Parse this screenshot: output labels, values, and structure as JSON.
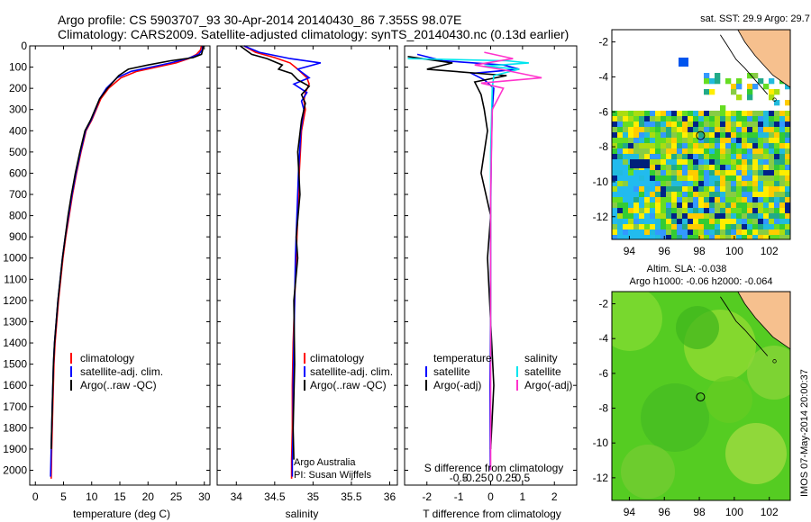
{
  "header": {
    "line1": "Argo profile: CS 5903707_93 30-Apr-2014 20140430_86 7.355S 98.07E",
    "line2": "Climatology: CARS2009. Satellite-adjusted climatology: synTS_20140430.nc (0.13d earlier)"
  },
  "colors": {
    "climatology": "#ff0000",
    "satellite": "#0000ff",
    "argo": "#000000",
    "sal_satellite": "#00e5ee",
    "sal_argo": "#ff33cc",
    "land": "#f6c08e"
  },
  "credits": {
    "agency": "Argo Australia",
    "pi": "PI: Susan Wijffels",
    "stamp": "IMOS 07-May-2014 20:00:37"
  },
  "chart_data": [
    {
      "id": "temperature",
      "type": "line",
      "xlabel": "temperature (deg C)",
      "xlim": [
        -1,
        31
      ],
      "xticks": [
        0,
        5,
        10,
        15,
        20,
        25,
        30
      ],
      "ylim": [
        2070,
        0
      ],
      "yticks": [
        0,
        100,
        200,
        300,
        400,
        500,
        600,
        700,
        800,
        900,
        1000,
        1100,
        1200,
        1300,
        1400,
        1500,
        1600,
        1700,
        1800,
        1900,
        2000
      ],
      "legend": [
        "climatology",
        "satellite-adj. clim.",
        "Argo(..raw -QC)"
      ],
      "series": [
        {
          "name": "climatology",
          "color": "#ff0000",
          "x": [
            29.5,
            29.3,
            28.6,
            27.2,
            25.0,
            21.5,
            18.0,
            15.2,
            13.0,
            11.6,
            10.8,
            10.0,
            9.0,
            8.1,
            7.3,
            6.6,
            6.0,
            5.4,
            4.9,
            4.5,
            4.1,
            3.8,
            3.5,
            3.3,
            3.1,
            2.9,
            2.8
          ],
          "y": [
            0,
            20,
            40,
            60,
            80,
            100,
            120,
            150,
            200,
            250,
            300,
            350,
            400,
            500,
            600,
            700,
            800,
            900,
            1000,
            1100,
            1200,
            1300,
            1400,
            1500,
            1700,
            1900,
            2040
          ]
        },
        {
          "name": "satellite-adj. clim.",
          "color": "#0000ff",
          "x": [
            29.7,
            29.6,
            29.0,
            27.0,
            24.0,
            20.5,
            17.0,
            14.5,
            12.6,
            11.4,
            10.7,
            9.9,
            8.9,
            8.0,
            7.2,
            6.5,
            5.9,
            5.3,
            4.8,
            4.4,
            4.0,
            3.7,
            3.4,
            3.2,
            3.0,
            2.8,
            2.7
          ],
          "y": [
            0,
            20,
            40,
            60,
            80,
            100,
            120,
            150,
            200,
            250,
            300,
            350,
            400,
            500,
            600,
            700,
            800,
            900,
            1000,
            1100,
            1200,
            1300,
            1400,
            1500,
            1700,
            1900,
            2030
          ]
        },
        {
          "name": "Argo(..raw -QC)",
          "color": "#000000",
          "x": [
            29.8,
            29.7,
            29.5,
            28.0,
            24.0,
            20.0,
            16.5,
            14.8,
            12.8,
            11.4,
            10.6,
            9.8,
            8.8,
            7.9,
            7.1,
            6.4,
            5.8,
            5.3,
            4.8,
            4.4,
            4.0,
            3.7,
            3.4,
            3.2,
            3.0,
            2.8
          ],
          "y": [
            0,
            20,
            40,
            55,
            70,
            90,
            110,
            140,
            200,
            250,
            300,
            350,
            400,
            500,
            600,
            700,
            800,
            900,
            1000,
            1100,
            1200,
            1300,
            1400,
            1500,
            1700,
            1900
          ]
        }
      ]
    },
    {
      "id": "salinity",
      "type": "line",
      "xlabel": "salinity",
      "xlim": [
        33.75,
        36.1
      ],
      "xticks": [
        34,
        34.5,
        35,
        35.5,
        36
      ],
      "ylim": [
        2070,
        0
      ],
      "legend": [
        "climatology",
        "satellite-adj. clim.",
        "Argo(..raw -QC)"
      ],
      "series": [
        {
          "name": "climatology",
          "color": "#ff0000",
          "x": [
            34.1,
            34.25,
            34.5,
            34.7,
            34.8,
            34.92,
            34.95,
            34.9,
            34.88,
            34.9,
            34.85,
            34.82,
            34.8,
            34.78,
            34.76,
            34.74,
            34.73,
            34.73,
            34.72,
            34.72
          ],
          "y": [
            0,
            30,
            55,
            80,
            110,
            150,
            180,
            220,
            260,
            300,
            400,
            600,
            800,
            1000,
            1200,
            1400,
            1600,
            1800,
            1950,
            2040
          ]
        },
        {
          "name": "satellite-adj. clim.",
          "color": "#0000ff",
          "x": [
            34.1,
            34.3,
            34.7,
            35.1,
            34.8,
            34.95,
            34.75,
            34.92,
            34.85,
            34.88,
            34.84,
            34.81,
            34.79,
            34.77,
            34.76,
            34.75,
            34.74,
            34.74,
            34.73,
            34.73
          ],
          "y": [
            0,
            30,
            60,
            80,
            110,
            150,
            180,
            220,
            260,
            300,
            400,
            600,
            800,
            1000,
            1200,
            1400,
            1600,
            1800,
            1950,
            2030
          ]
        },
        {
          "name": "Argo(..raw -QC)",
          "color": "#000000",
          "x": [
            34.05,
            34.2,
            34.4,
            34.6,
            34.55,
            34.72,
            34.8,
            34.95,
            34.85,
            34.9,
            34.85,
            34.8,
            34.83,
            34.78,
            34.8,
            34.75,
            34.76,
            34.74,
            34.75
          ],
          "y": [
            0,
            40,
            60,
            90,
            110,
            130,
            160,
            190,
            230,
            270,
            350,
            500,
            700,
            900,
            1000,
            1200,
            1500,
            1800,
            1950
          ]
        }
      ]
    },
    {
      "id": "difference",
      "type": "line",
      "xlabel": "T difference from climatology",
      "xlabel_top": "S difference from climatology",
      "xlim": [
        -2.7,
        2.7
      ],
      "xticks": [
        -2,
        -1,
        0,
        1,
        2
      ],
      "xticks_s": [
        "-0.5",
        "-0.25",
        "0",
        "0.25",
        "0.5"
      ],
      "ylim": [
        2070,
        0
      ],
      "legend_left_title": "temperature",
      "legend_right_title": "salinity",
      "legend": [
        "satellite",
        "Argo(-adj)",
        "satellite",
        "Argo(-adj)"
      ],
      "series": [
        {
          "name": "T satellite",
          "color": "#0000ff",
          "x": [
            -2.3,
            -1.5,
            0.4,
            0.9,
            -0.6,
            -0.2,
            0.1,
            0.05,
            0.02,
            0.0,
            0.0,
            -0.02,
            -0.01
          ],
          "y": [
            40,
            70,
            90,
            110,
            130,
            160,
            200,
            300,
            500,
            800,
            1200,
            1600,
            2000
          ]
        },
        {
          "name": "T Argo(-adj)",
          "color": "#000000",
          "x": [
            -2.6,
            -1.2,
            -2.0,
            0.5,
            -0.5,
            -0.3,
            -0.2,
            -0.1,
            -0.3,
            0.0,
            -0.1,
            0.0,
            0.1,
            0.0
          ],
          "y": [
            50,
            80,
            110,
            140,
            170,
            230,
            300,
            400,
            600,
            800,
            1000,
            1300,
            1600,
            1900
          ]
        },
        {
          "name": "S satellite",
          "color": "#00e5ee",
          "x": [
            -2.6,
            0.5,
            1.2,
            -0.2,
            0.9,
            0.1,
            0.05,
            0.0,
            0.0
          ],
          "y": [
            60,
            70,
            80,
            95,
            110,
            140,
            200,
            500,
            1500
          ]
        },
        {
          "name": "S Argo(-adj)",
          "color": "#ff33cc",
          "x": [
            -0.2,
            0.7,
            -0.5,
            0.3,
            1.6,
            -0.3,
            0.4,
            0.05,
            0.0,
            0.0
          ],
          "y": [
            30,
            60,
            90,
            110,
            150,
            175,
            200,
            300,
            700,
            2000
          ]
        }
      ]
    },
    {
      "id": "sst-map",
      "type": "heatmap",
      "title": "sat. SST: 29.9 Argo: 29.7",
      "xticks": [
        94,
        96,
        98,
        100,
        102
      ],
      "yticks": [
        -2,
        -4,
        -6,
        -8,
        -10,
        -12
      ],
      "xlim": [
        93,
        103.2
      ],
      "ylim": [
        -13.3,
        -1.3
      ],
      "argo_position": [
        98.07,
        -7.355
      ]
    },
    {
      "id": "sla-map",
      "type": "heatmap",
      "title": "Altim. SLA: -0.038",
      "subtitle": "Argo h1000: -0.06 h2000: -0.064",
      "xticks": [
        94,
        96,
        98,
        100,
        102
      ],
      "yticks": [
        -2,
        -4,
        -6,
        -8,
        -10,
        -12
      ],
      "xlim": [
        93,
        103.2
      ],
      "ylim": [
        -13.3,
        -1.3
      ],
      "argo_position": [
        98.07,
        -7.355
      ]
    }
  ]
}
